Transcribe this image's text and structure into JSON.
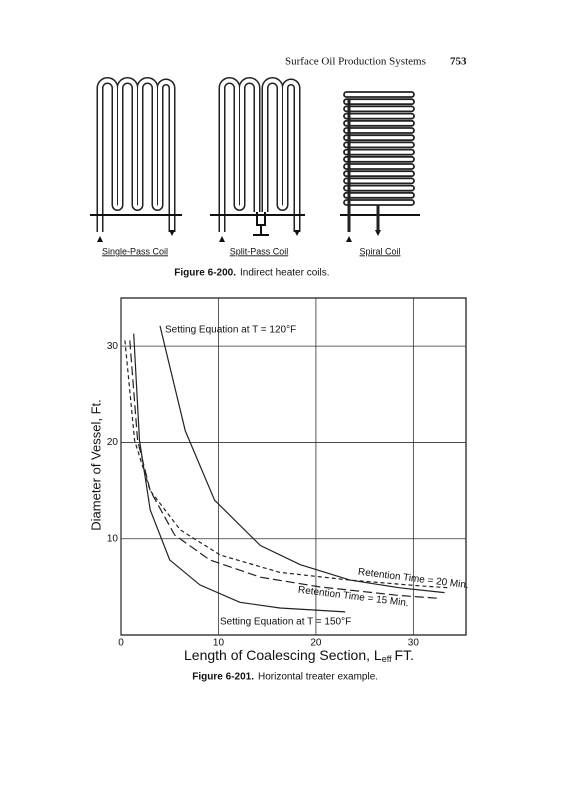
{
  "header": {
    "title": "Surface Oil Production Systems",
    "page": "753"
  },
  "figure_6_200": {
    "labels": [
      "Single-Pass Coil",
      "Split-Pass Coil",
      "Spiral Coil"
    ],
    "caption": {
      "number": "Figure 6-200.",
      "text": "Indirect heater coils."
    }
  },
  "chart_data": {
    "type": "line",
    "ylabel": "Diameter of Vessel, Ft.",
    "xlabel": {
      "main": "Length of Coalescing Section, L",
      "sub": "eff",
      "unit": "FT."
    },
    "xlim": [
      0,
      35.4
    ],
    "ylim": [
      0,
      35
    ],
    "xticks": [
      0,
      10,
      20,
      30
    ],
    "yticks": [
      10,
      20,
      30
    ],
    "grid": true,
    "series": [
      {
        "name": "Setting Equation at T = 120°F",
        "color": "#222222",
        "line_style": "solid",
        "x": [
          4.0,
          6.6,
          9.6,
          14.3,
          18.4,
          23.5,
          28.6,
          33.2
        ],
        "values": [
          32.1,
          21.2,
          14.0,
          9.3,
          7.3,
          5.7,
          4.9,
          4.4
        ]
      },
      {
        "name": "Setting Equation at T = 150°F",
        "color": "#222222",
        "line_style": "solid",
        "x": [
          1.3,
          1.9,
          3.0,
          5.0,
          8.1,
          12.2,
          16.3,
          23.0
        ],
        "values": [
          31.3,
          20.2,
          13.0,
          7.8,
          5.2,
          3.4,
          2.8,
          2.4
        ]
      },
      {
        "name": "Retention Time = 20 Min.",
        "color": "#222222",
        "line_style": "short-dashed",
        "x": [
          0.4,
          1.4,
          3.0,
          6.1,
          10.2,
          16.3,
          23.5,
          30.7,
          33.7
        ],
        "values": [
          30.6,
          20.2,
          15.0,
          10.9,
          8.3,
          6.5,
          5.7,
          5.1,
          4.9
        ]
      },
      {
        "name": "Retention Time = 15 Min.",
        "color": "#222222",
        "line_style": "long-dashed",
        "x": [
          0.9,
          1.7,
          3.0,
          5.5,
          9.1,
          14.3,
          20.4,
          28.6,
          32.7
        ],
        "values": [
          30.6,
          20.2,
          15.0,
          10.4,
          7.8,
          6.0,
          5.0,
          4.1,
          3.8
        ]
      }
    ],
    "caption": {
      "number": "Figure 6-201.",
      "text": "Horizontal treater example."
    }
  }
}
